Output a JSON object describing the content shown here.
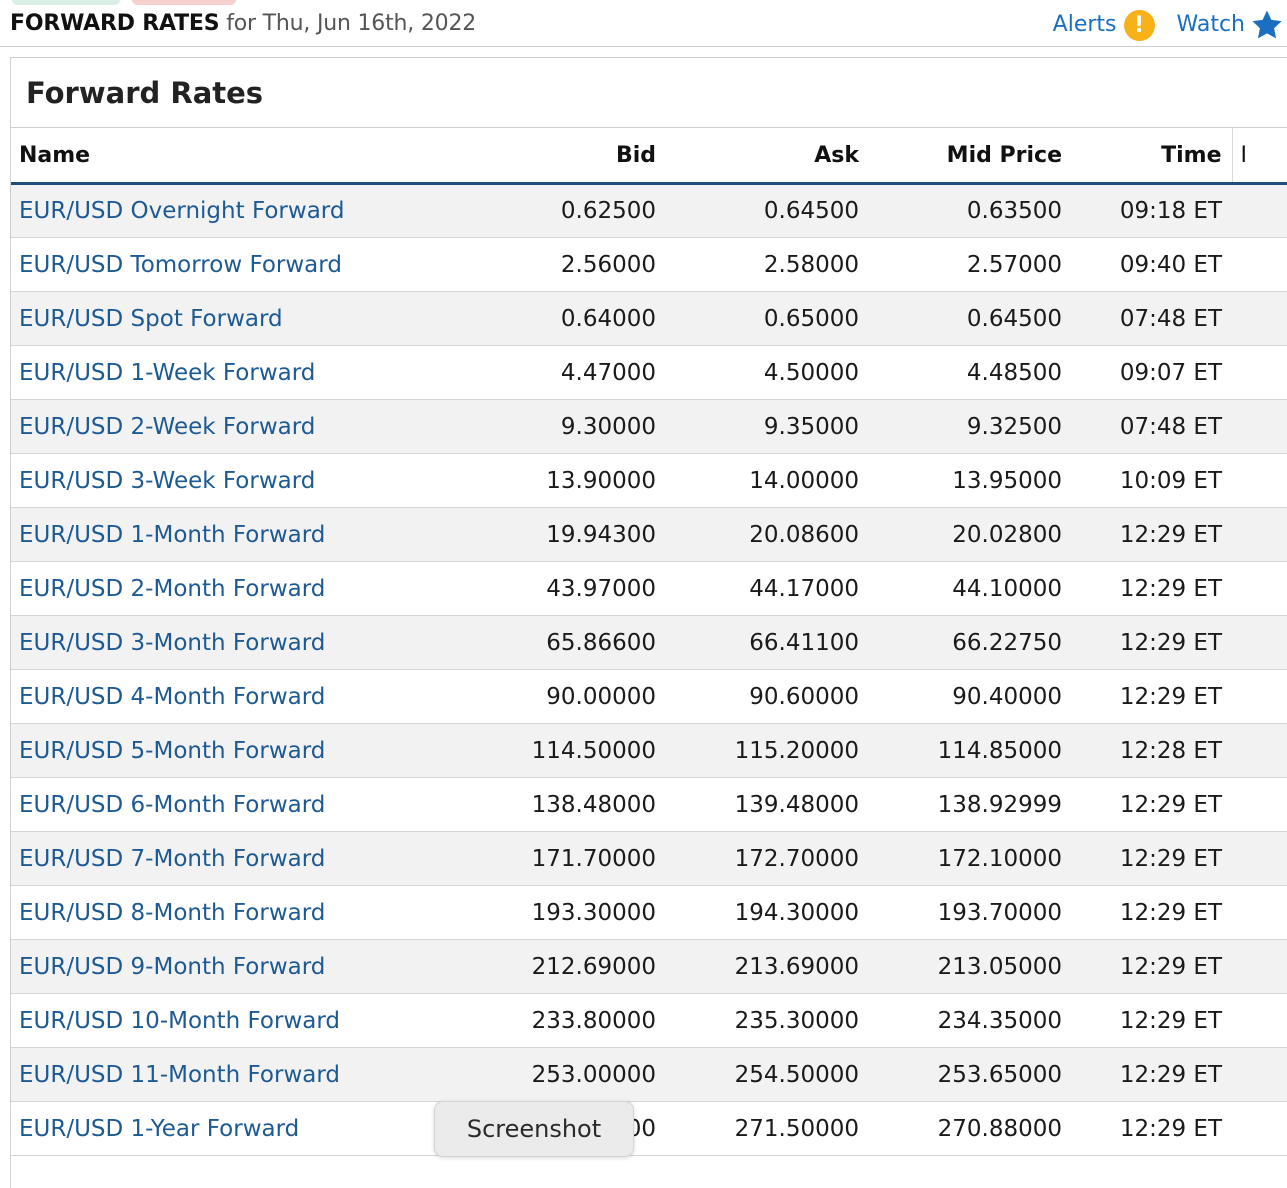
{
  "header": {
    "title_bold": "FORWARD RATES",
    "title_rest": "for Thu, Jun 16th, 2022",
    "alerts_label": "Alerts",
    "alerts_icon": "exclamation-icon",
    "alerts_glyph": "!",
    "watch_label": "Watch",
    "watch_icon": "star-icon",
    "accent_color": "#1a6fc0",
    "alert_color": "#f8b219"
  },
  "card": {
    "title": "Forward Rates"
  },
  "table": {
    "columns": {
      "name": "Name",
      "bid": "Bid",
      "ask": "Ask",
      "mid": "Mid Price",
      "time": "Time",
      "more": "I"
    },
    "rows": [
      {
        "name": "EUR/USD Overnight Forward",
        "bid": "0.62500",
        "ask": "0.64500",
        "mid": "0.63500",
        "time": "09:18 ET"
      },
      {
        "name": "EUR/USD Tomorrow Forward",
        "bid": "2.56000",
        "ask": "2.58000",
        "mid": "2.57000",
        "time": "09:40 ET"
      },
      {
        "name": "EUR/USD Spot Forward",
        "bid": "0.64000",
        "ask": "0.65000",
        "mid": "0.64500",
        "time": "07:48 ET"
      },
      {
        "name": "EUR/USD 1-Week Forward",
        "bid": "4.47000",
        "ask": "4.50000",
        "mid": "4.48500",
        "time": "09:07 ET"
      },
      {
        "name": "EUR/USD 2-Week Forward",
        "bid": "9.30000",
        "ask": "9.35000",
        "mid": "9.32500",
        "time": "07:48 ET"
      },
      {
        "name": "EUR/USD 3-Week Forward",
        "bid": "13.90000",
        "ask": "14.00000",
        "mid": "13.95000",
        "time": "10:09 ET"
      },
      {
        "name": "EUR/USD 1-Month Forward",
        "bid": "19.94300",
        "ask": "20.08600",
        "mid": "20.02800",
        "time": "12:29 ET"
      },
      {
        "name": "EUR/USD 2-Month Forward",
        "bid": "43.97000",
        "ask": "44.17000",
        "mid": "44.10000",
        "time": "12:29 ET"
      },
      {
        "name": "EUR/USD 3-Month Forward",
        "bid": "65.86600",
        "ask": "66.41100",
        "mid": "66.22750",
        "time": "12:29 ET"
      },
      {
        "name": "EUR/USD 4-Month Forward",
        "bid": "90.00000",
        "ask": "90.60000",
        "mid": "90.40000",
        "time": "12:29 ET"
      },
      {
        "name": "EUR/USD 5-Month Forward",
        "bid": "114.50000",
        "ask": "115.20000",
        "mid": "114.85000",
        "time": "12:28 ET"
      },
      {
        "name": "EUR/USD 6-Month Forward",
        "bid": "138.48000",
        "ask": "139.48000",
        "mid": "138.92999",
        "time": "12:29 ET"
      },
      {
        "name": "EUR/USD 7-Month Forward",
        "bid": "171.70000",
        "ask": "172.70000",
        "mid": "172.10000",
        "time": "12:29 ET"
      },
      {
        "name": "EUR/USD 8-Month Forward",
        "bid": "193.30000",
        "ask": "194.30000",
        "mid": "193.70000",
        "time": "12:29 ET"
      },
      {
        "name": "EUR/USD 9-Month Forward",
        "bid": "212.69000",
        "ask": "213.69000",
        "mid": "213.05000",
        "time": "12:29 ET"
      },
      {
        "name": "EUR/USD 10-Month Forward",
        "bid": "233.80000",
        "ask": "235.30000",
        "mid": "234.35000",
        "time": "12:29 ET"
      },
      {
        "name": "EUR/USD 11-Month Forward",
        "bid": "253.00000",
        "ask": "254.50000",
        "mid": "253.65000",
        "time": "12:29 ET"
      },
      {
        "name": "EUR/USD 1-Year Forward",
        "bid": "",
        "ask": "271.50000",
        "mid": "270.88000",
        "time": "12:29 ET"
      }
    ]
  },
  "overlay": {
    "tooltip_text": "Screenshot",
    "partial_bid_text": "000"
  }
}
